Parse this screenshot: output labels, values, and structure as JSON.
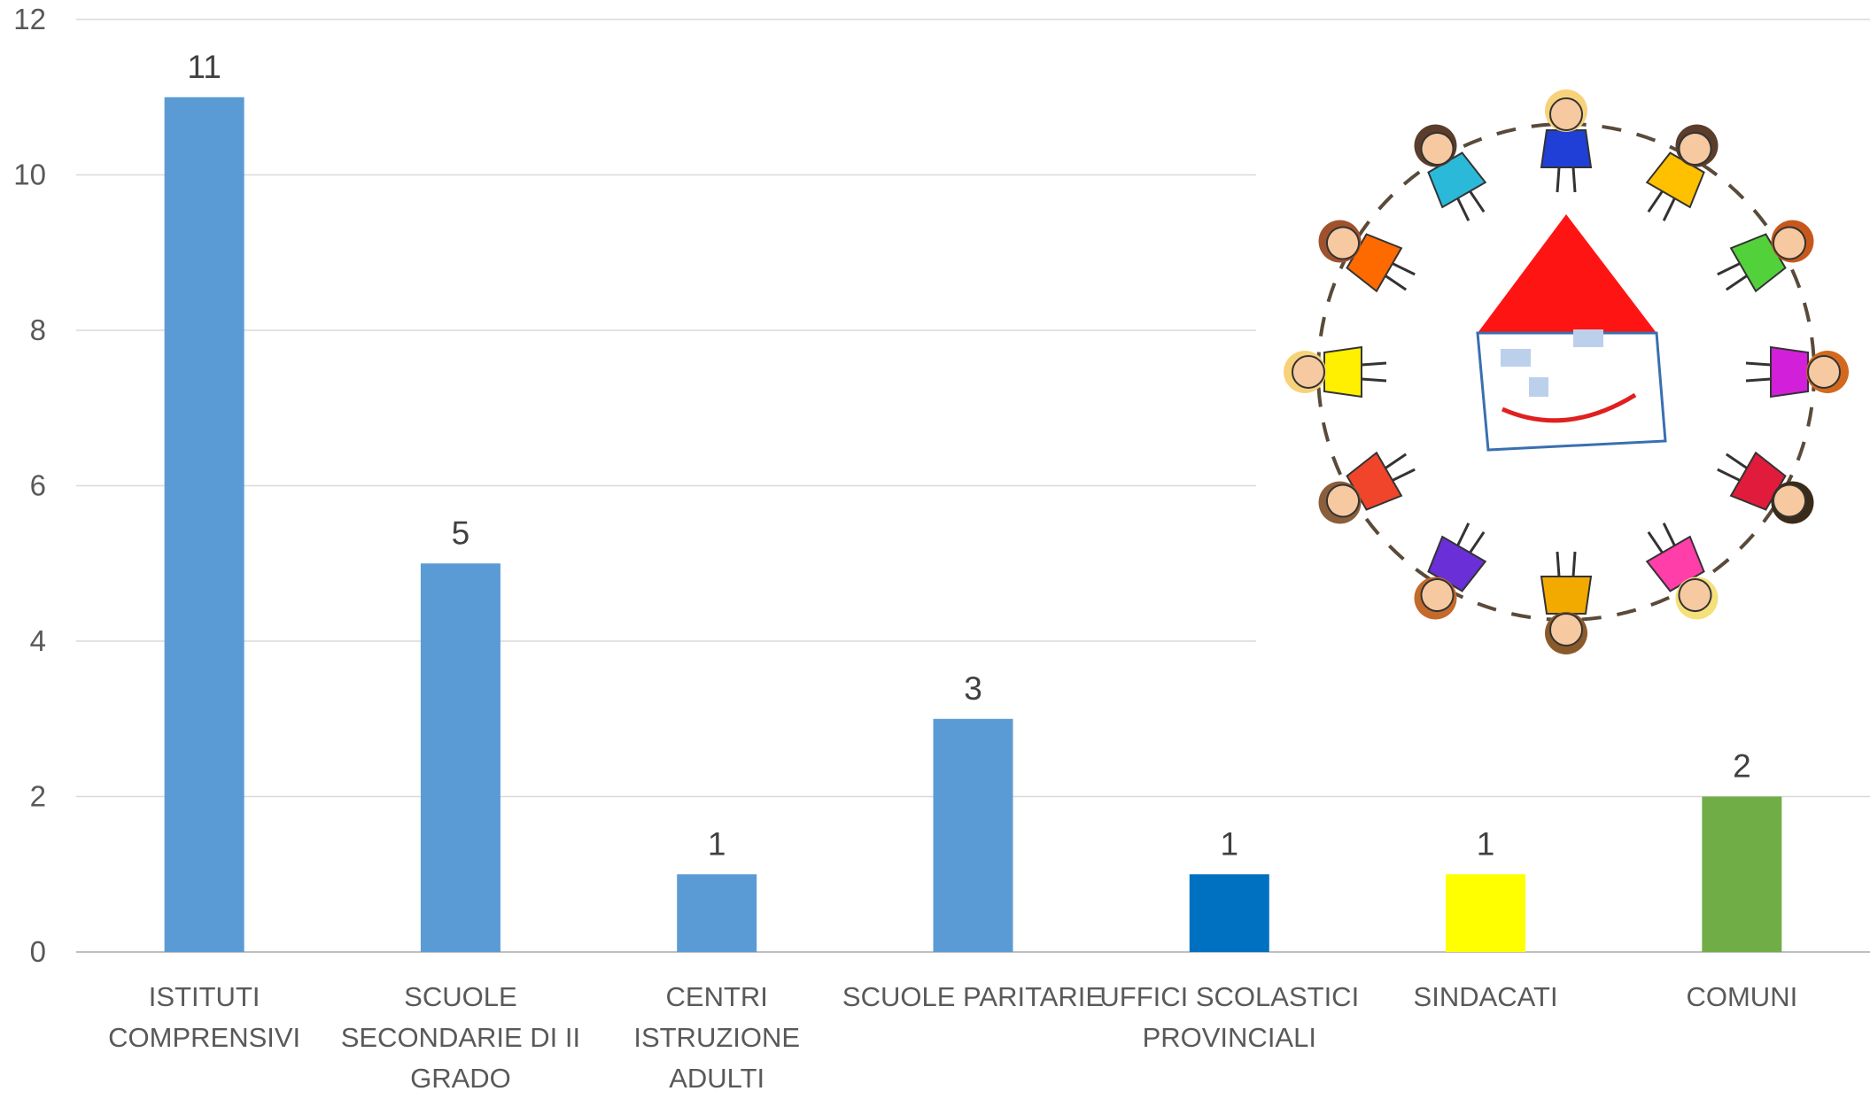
{
  "chart_data": {
    "type": "bar",
    "categories": [
      "ISTITUTI COMPRENSIVI",
      "SCUOLE SECONDARIE DI II GRADO",
      "CENTRI ISTRUZIONE ADULTI",
      "SCUOLE PARITARIE",
      "UFFICI SCOLASTICI PROVINCIALI",
      "SINDACATI",
      "COMUNI"
    ],
    "values": [
      11,
      5,
      1,
      3,
      1,
      1,
      2
    ],
    "colors": [
      "#5B9BD5",
      "#5B9BD5",
      "#5B9BD5",
      "#5B9BD5",
      "#0070C0",
      "#FFFF00",
      "#70AD47"
    ],
    "data_labels": [
      "11",
      "5",
      "1",
      "3",
      "1",
      "1",
      "2"
    ],
    "ylim": [
      0,
      12
    ],
    "yticks": [
      0,
      2,
      4,
      6,
      8,
      10,
      12
    ],
    "grid": true,
    "legend": "none"
  },
  "decoration": {
    "illustration": "children-holding-hands-around-smiling-house"
  }
}
